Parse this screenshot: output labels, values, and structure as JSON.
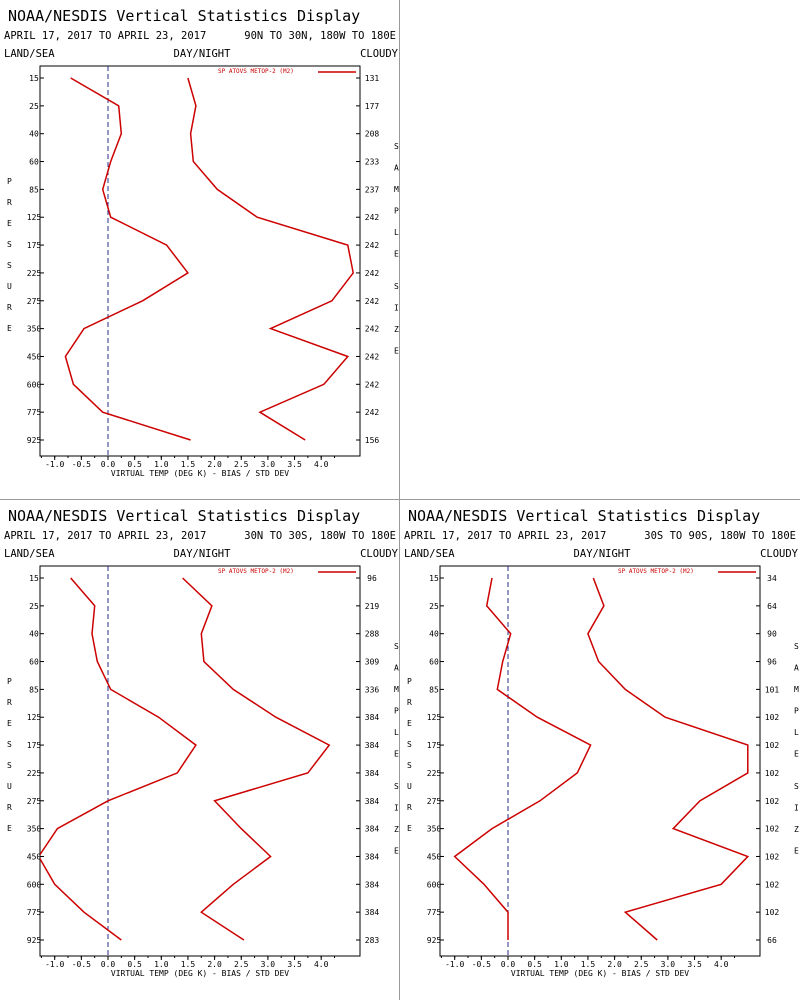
{
  "chart_data": [
    {
      "type": "line",
      "title": "NOAA/NESDIS Vertical Statistics Display",
      "date_range": "APRIL 17, 2017 TO APRIL 23, 2017",
      "region": "90N TO 30N, 180W TO 180E",
      "land_sea": "LAND/SEA",
      "day_night": "DAY/NIGHT",
      "cloudy": "CLOUDY",
      "xlabel": "VIRTUAL TEMP (DEG K) - BIAS / STD DEV",
      "ylabel": "PRESSURE",
      "right_label": "SAMPLE SIZE",
      "xlim": [
        -1.5,
        4.5
      ],
      "x_ticks": [
        "-1.0",
        "-0.5",
        "0.0",
        "0.5",
        "1.0",
        "1.5",
        "2.0",
        "2.5",
        "3.0",
        "3.5",
        "4.0"
      ],
      "pressure_levels": [
        "15",
        "25",
        "40",
        "60",
        "85",
        "125",
        "175",
        "225",
        "275",
        "350",
        "450",
        "600",
        "775",
        "925"
      ],
      "sample_size": [
        "131",
        "177",
        "208",
        "233",
        "237",
        "242",
        "242",
        "242",
        "242",
        "242",
        "242",
        "242",
        "242",
        "156"
      ],
      "legend": "SP ATOVS METOP-2 (M2)",
      "line_color": "#cc0000",
      "bias": [
        -0.7,
        0.2,
        0.25,
        0.05,
        -0.1,
        0.05,
        1.1,
        1.5,
        0.65,
        -0.45,
        -0.8,
        -0.65,
        -0.1,
        1.55
      ],
      "std_dev": [
        1.5,
        1.65,
        1.55,
        1.6,
        2.05,
        2.8,
        4.5,
        4.6,
        4.2,
        3.05,
        4.5,
        4.05,
        2.85,
        3.7
      ]
    },
    {
      "type": "line",
      "title": "NOAA/NESDIS Vertical Statistics Display",
      "date_range": "APRIL 17, 2017 TO APRIL 23, 2017",
      "region": "30N TO 30S, 180W TO 180E",
      "land_sea": "LAND/SEA",
      "day_night": "DAY/NIGHT",
      "cloudy": "CLOUDY",
      "xlabel": "VIRTUAL TEMP (DEG K) - BIAS / STD DEV",
      "ylabel": "PRESSURE",
      "right_label": "SAMPLE SIZE",
      "xlim": [
        -1.5,
        4.5
      ],
      "x_ticks": [
        "-1.0",
        "-0.5",
        "0.0",
        "0.5",
        "1.0",
        "1.5",
        "2.0",
        "2.5",
        "3.0",
        "3.5",
        "4.0"
      ],
      "pressure_levels": [
        "15",
        "25",
        "40",
        "60",
        "85",
        "125",
        "175",
        "225",
        "275",
        "350",
        "450",
        "600",
        "775",
        "925"
      ],
      "sample_size": [
        "96",
        "219",
        "288",
        "309",
        "336",
        "384",
        "384",
        "384",
        "384",
        "384",
        "384",
        "384",
        "384",
        "283"
      ],
      "legend": "SP ATOVS METOP-2 (M2)",
      "line_color": "#cc0000",
      "bias": [
        -0.7,
        -0.25,
        -0.3,
        -0.2,
        0.05,
        0.95,
        1.65,
        1.3,
        0.0,
        -0.95,
        -1.3,
        -1.0,
        -0.45,
        0.25
      ],
      "std_dev": [
        1.4,
        1.95,
        1.75,
        1.8,
        2.35,
        3.15,
        4.15,
        3.75,
        2.0,
        2.5,
        3.05,
        2.35,
        1.75,
        2.55
      ]
    },
    {
      "type": "line",
      "title": "NOAA/NESDIS Vertical Statistics Display",
      "date_range": "APRIL 17, 2017 TO APRIL 23, 2017",
      "region": "30S TO 90S, 180W TO 180E",
      "land_sea": "LAND/SEA",
      "day_night": "DAY/NIGHT",
      "cloudy": "CLOUDY",
      "xlabel": "VIRTUAL TEMP (DEG K) - BIAS / STD DEV",
      "ylabel": "PRESSURE",
      "right_label": "SAMPLE SIZE",
      "xlim": [
        -1.5,
        4.5
      ],
      "x_ticks": [
        "-1.0",
        "-0.5",
        "0.0",
        "0.5",
        "1.0",
        "1.5",
        "2.0",
        "2.5",
        "3.0",
        "3.5",
        "4.0"
      ],
      "pressure_levels": [
        "15",
        "25",
        "40",
        "60",
        "85",
        "125",
        "175",
        "225",
        "275",
        "350",
        "450",
        "600",
        "775",
        "925"
      ],
      "sample_size": [
        "34",
        "64",
        "90",
        "96",
        "101",
        "102",
        "102",
        "102",
        "102",
        "102",
        "102",
        "102",
        "102",
        "66"
      ],
      "legend": "SP ATOVS METOP-2 (M2)",
      "line_color": "#cc0000",
      "bias": [
        -0.3,
        -0.4,
        0.05,
        -0.1,
        -0.2,
        0.55,
        1.55,
        1.3,
        0.6,
        -0.3,
        -1.0,
        -0.45,
        0.0,
        0.0
      ],
      "std_dev": [
        1.6,
        1.8,
        1.5,
        1.7,
        2.2,
        2.95,
        4.5,
        4.5,
        3.6,
        3.1,
        4.5,
        4.0,
        2.2,
        2.8
      ]
    }
  ]
}
